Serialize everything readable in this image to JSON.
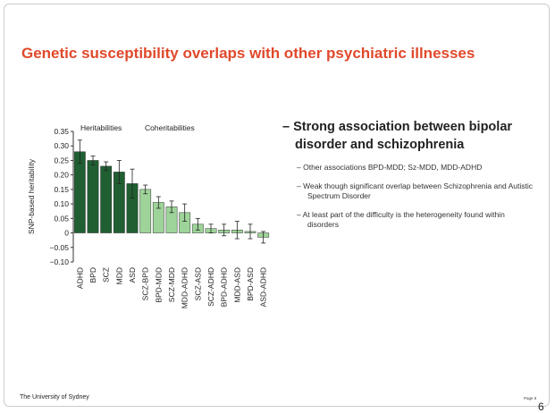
{
  "title": "Genetic susceptibility overlaps with other psychiatric illnesses",
  "bullets": [
    {
      "text": "Strong association between bipolar disorder and schizophrenia",
      "sub": [
        "Other associations BPD-MDD; Sz-MDD, MDD-ADHD",
        "Weak though significant overlap between Schizophrenia and Autistic Spectrum Disorder",
        "At least part of the difficulty is the heterogeneity found within disorders"
      ]
    }
  ],
  "footer": "The University of Sydney",
  "page_label": "Page 6",
  "page_number": "6",
  "chart_data": {
    "type": "bar",
    "ylabel": "SNP-based heritability",
    "annotations": [
      "Heritabilities",
      "Coheritabilities"
    ],
    "categories": [
      "ADHD",
      "BPD",
      "SCZ",
      "MDD",
      "ASD",
      "SCZ-BPD",
      "BPD-MDD",
      "SCZ-MDD",
      "MDD-ADHD",
      "SCZ-ASD",
      "SCZ-ADHD",
      "BPD-ADHD",
      "MDD-ASD",
      "BPD-ASD",
      "ASD-ADHD"
    ],
    "values": [
      0.28,
      0.25,
      0.23,
      0.21,
      0.17,
      0.15,
      0.105,
      0.09,
      0.07,
      0.03,
      0.015,
      0.01,
      0.01,
      0.005,
      -0.015
    ],
    "errors": [
      0.04,
      0.015,
      0.015,
      0.04,
      0.05,
      0.015,
      0.02,
      0.02,
      0.03,
      0.02,
      0.015,
      0.02,
      0.03,
      0.025,
      0.02
    ],
    "colors": [
      "#1f5f31",
      "#1f5f31",
      "#1f5f31",
      "#1f5f31",
      "#1f5f31",
      "#9ed49a",
      "#9ed49a",
      "#9ed49a",
      "#9ed49a",
      "#9ed49a",
      "#9ed49a",
      "#9ed49a",
      "#9ed49a",
      "#9ed49a",
      "#9ed49a"
    ],
    "ylim": [
      -0.1,
      0.35
    ],
    "yticks": [
      {
        "value": -0.1,
        "label": "−0.10"
      },
      {
        "value": -0.05,
        "label": "−0.05"
      },
      0,
      0.05,
      {
        "value": 0.1,
        "label": "0.10"
      },
      0.15,
      {
        "value": 0.2,
        "label": "0.20"
      },
      0.25,
      {
        "value": 0.3,
        "label": "0.30"
      },
      0.35
    ]
  }
}
